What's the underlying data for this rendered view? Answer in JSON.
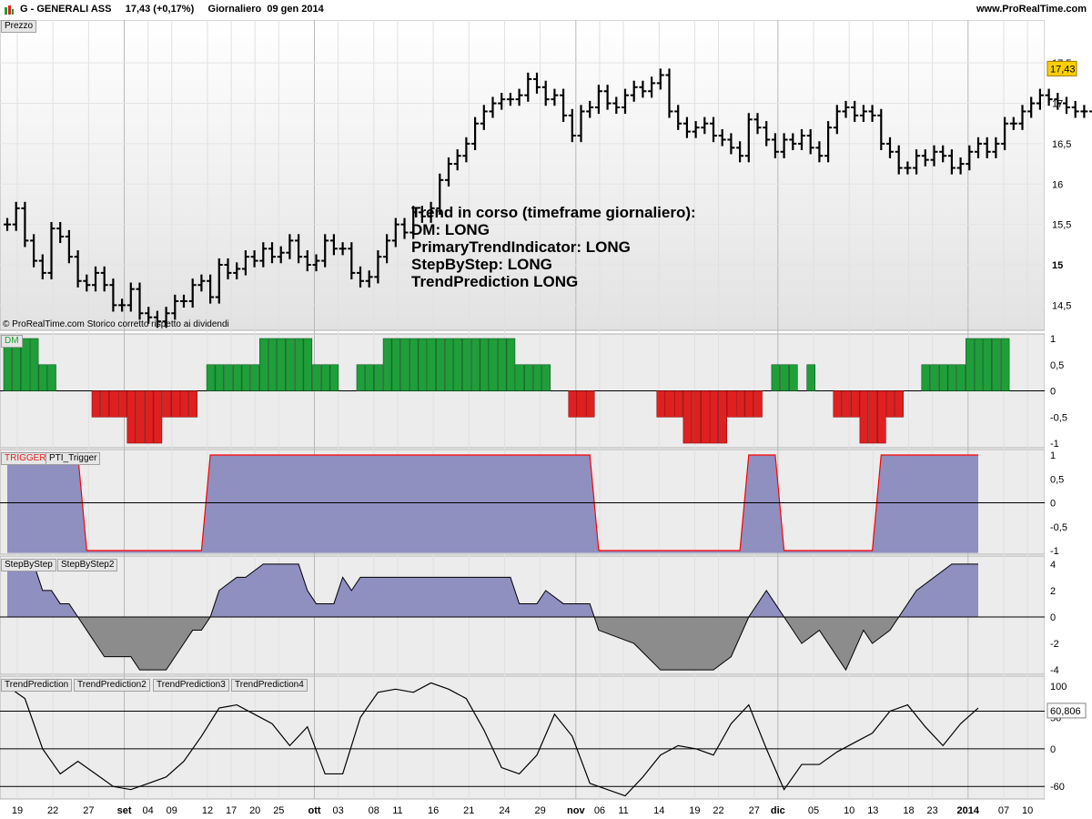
{
  "header": {
    "symbol": "G - GENERALI ASS",
    "last": "17,43 (+0,17%)",
    "period": "Giornaliero",
    "date": "09 gen 2014",
    "site": "www.ProRealTime.com"
  },
  "colors": {
    "up_bar": "#1f9e3a",
    "down_bar": "#e02020",
    "area_fill": "#8f8fc0",
    "neg_area_fill": "#8c8c8c",
    "trigger_line": "#ff0000",
    "price_label_bg": "#ffd000"
  },
  "price_panel": {
    "label": "Prezzo",
    "copyright": "© ProRealTime.com  Storico corretto rispetto ai dividendi",
    "current_value": "17,43",
    "yticks": [
      "17,5",
      "17",
      "16,5",
      "16",
      "15,5",
      "15",
      "14,5"
    ],
    "annotation": [
      "Trend in corso (timeframe giornaliero):",
      "DM: LONG",
      "PrimaryTrendIndicator: LONG",
      "StepByStep: LONG",
      "TrendPrediction LONG"
    ]
  },
  "dm_panel": {
    "label": "DM",
    "yticks": [
      "1",
      "0,5",
      "0",
      "-0,5",
      "-1"
    ]
  },
  "trigger_panel": {
    "labels": [
      "TRIGGER",
      "PTI_Trigger"
    ],
    "yticks": [
      "1",
      "0,5",
      "0",
      "-0,5",
      "-1"
    ]
  },
  "step_panel": {
    "labels": [
      "StepByStep",
      "StepByStep2"
    ],
    "yticks": [
      "4",
      "2",
      "0",
      "-2",
      "-4"
    ]
  },
  "tp_panel": {
    "labels": [
      "TrendPrediction",
      "TrendPrediction2",
      "TrendPrediction3",
      "TrendPrediction4"
    ],
    "yticks": [
      "100",
      "50",
      "0",
      "-60"
    ],
    "current_value": "60,806"
  },
  "x_axis": {
    "ticks": [
      {
        "label": "19",
        "bold": false
      },
      {
        "label": "22",
        "bold": false
      },
      {
        "label": "27",
        "bold": false
      },
      {
        "label": "set",
        "bold": true
      },
      {
        "label": "04",
        "bold": false
      },
      {
        "label": "09",
        "bold": false
      },
      {
        "label": "12",
        "bold": false
      },
      {
        "label": "17",
        "bold": false
      },
      {
        "label": "20",
        "bold": false
      },
      {
        "label": "25",
        "bold": false
      },
      {
        "label": "ott",
        "bold": true
      },
      {
        "label": "03",
        "bold": false
      },
      {
        "label": "08",
        "bold": false
      },
      {
        "label": "11",
        "bold": false
      },
      {
        "label": "16",
        "bold": false
      },
      {
        "label": "21",
        "bold": false
      },
      {
        "label": "24",
        "bold": false
      },
      {
        "label": "29",
        "bold": false
      },
      {
        "label": "nov",
        "bold": true
      },
      {
        "label": "06",
        "bold": false
      },
      {
        "label": "11",
        "bold": false
      },
      {
        "label": "14",
        "bold": false
      },
      {
        "label": "19",
        "bold": false
      },
      {
        "label": "22",
        "bold": false
      },
      {
        "label": "27",
        "bold": false
      },
      {
        "label": "dic",
        "bold": true
      },
      {
        "label": "05",
        "bold": false
      },
      {
        "label": "10",
        "bold": false
      },
      {
        "label": "13",
        "bold": false
      },
      {
        "label": "18",
        "bold": false
      },
      {
        "label": "23",
        "bold": false
      },
      {
        "label": "2014",
        "bold": true
      },
      {
        "label": "07",
        "bold": false
      },
      {
        "label": "10",
        "bold": false
      }
    ]
  },
  "chart_data": [
    {
      "type": "line",
      "name": "price",
      "style": "ohlc-bars",
      "ylim": [
        14.2,
        17.75
      ],
      "close": [
        15.5,
        15.7,
        15.3,
        15.05,
        14.9,
        15.45,
        15.35,
        15.1,
        14.8,
        14.75,
        14.9,
        14.75,
        14.5,
        14.5,
        14.7,
        14.4,
        14.35,
        14.3,
        14.4,
        14.55,
        14.55,
        14.75,
        14.8,
        14.6,
        15,
        14.9,
        14.95,
        15.1,
        15.05,
        15.2,
        15.1,
        15.15,
        15.3,
        15.1,
        15.0,
        15.05,
        15.3,
        15.2,
        15.2,
        14.9,
        14.8,
        14.85,
        15.1,
        15.3,
        15.5,
        15.4,
        15.65,
        15.6,
        15.7,
        16.05,
        16.25,
        16.35,
        16.5,
        16.75,
        16.9,
        17.0,
        17.05,
        17.05,
        17.1,
        17.3,
        17.2,
        17.05,
        17.1,
        16.85,
        16.6,
        16.9,
        16.95,
        17.15,
        17.0,
        16.95,
        17.1,
        17.2,
        17.15,
        17.25,
        17.35,
        16.9,
        16.75,
        16.65,
        16.7,
        16.75,
        16.6,
        16.55,
        16.45,
        16.35,
        16.8,
        16.7,
        16.55,
        16.4,
        16.55,
        16.5,
        16.6,
        16.45,
        16.35,
        16.7,
        16.9,
        16.95,
        16.85,
        16.9,
        16.85,
        16.5,
        16.4,
        16.2,
        16.2,
        16.35,
        16.3,
        16.4,
        16.35,
        16.2,
        16.25,
        16.4,
        16.5,
        16.4,
        16.5,
        16.75,
        16.75,
        16.9,
        17.0,
        17.1,
        17.05,
        17.0,
        16.95,
        16.9,
        16.9,
        17.3,
        17.4,
        17.43
      ],
      "yticks": [
        17.5,
        17,
        16.5,
        16,
        15.5,
        15,
        14.5
      ]
    },
    {
      "type": "bar",
      "name": "DM",
      "ylim": [
        -1,
        1
      ],
      "values": [
        1,
        1,
        1,
        1,
        0.5,
        0.5,
        0,
        0,
        0,
        0,
        -0.5,
        -0.5,
        -0.5,
        -0.5,
        -1,
        -1,
        -1,
        -1,
        -0.5,
        -0.5,
        -0.5,
        -0.5,
        0,
        0.5,
        0.5,
        0.5,
        0.5,
        0.5,
        0.5,
        1,
        1,
        1,
        1,
        1,
        1,
        0.5,
        0.5,
        0.5,
        0,
        0,
        0.5,
        0.5,
        0.5,
        1,
        1,
        1,
        1,
        1,
        1,
        1,
        1,
        1,
        1,
        1,
        1,
        1,
        1,
        1,
        0.5,
        0.5,
        0.5,
        0.5,
        0,
        0,
        -0.5,
        -0.5,
        -0.5,
        0,
        0,
        0,
        0,
        0,
        0,
        0,
        -0.5,
        -0.5,
        -0.5,
        -1,
        -1,
        -1,
        -1,
        -1,
        -0.5,
        -0.5,
        -0.5,
        -0.5,
        0,
        0.5,
        0.5,
        0.5,
        0,
        0.5,
        0,
        0,
        -0.5,
        -0.5,
        -0.5,
        -1,
        -1,
        -1,
        -0.5,
        -0.5,
        0,
        0,
        0.5,
        0.5,
        0.5,
        0.5,
        0.5,
        1,
        1,
        1,
        1,
        1
      ]
    },
    {
      "type": "area",
      "name": "PTI_Trigger",
      "ylim": [
        -1,
        1
      ],
      "x": [
        0,
        8,
        9,
        22,
        23,
        66,
        67,
        83,
        84,
        87,
        88,
        98,
        99,
        110
      ],
      "values": [
        1,
        1,
        -1,
        -1,
        1,
        1,
        -1,
        -1,
        1,
        1,
        -1,
        -1,
        1,
        1
      ]
    },
    {
      "type": "area",
      "name": "StepByStep",
      "ylim": [
        -4.4,
        4.4
      ],
      "x": [
        0,
        3,
        4,
        5,
        6,
        7,
        8,
        9,
        10,
        11,
        12,
        14,
        15,
        16,
        18,
        20,
        21,
        22,
        23,
        24,
        26,
        27,
        29,
        30,
        33,
        34,
        35,
        37,
        38,
        39,
        40,
        43,
        57,
        58,
        60,
        61,
        63,
        66,
        67,
        71,
        74,
        77,
        80,
        82,
        84,
        86,
        87,
        88,
        90,
        92,
        95,
        97,
        98,
        100,
        101,
        103,
        107,
        110
      ],
      "values": [
        4,
        4,
        2,
        2,
        1,
        1,
        0,
        -1,
        -2,
        -3,
        -3,
        -3,
        -4,
        -4,
        -4,
        -2,
        -1,
        -1,
        0,
        2,
        3,
        3,
        4,
        4,
        4,
        2,
        1,
        1,
        3,
        2,
        3,
        3,
        3,
        1,
        1,
        2,
        1,
        1,
        -1,
        -2,
        -4,
        -4,
        -4,
        -3,
        0,
        2,
        1,
        0,
        -2,
        -1,
        -4,
        -1,
        -2,
        -1,
        0,
        2,
        4,
        4
      ]
    },
    {
      "type": "line",
      "name": "TrendPrediction",
      "ylim": [
        -80,
        110
      ],
      "x": [
        0,
        2,
        4,
        6,
        8,
        10,
        12,
        14,
        16,
        18,
        20,
        22,
        24,
        26,
        28,
        30,
        32,
        34,
        36,
        38,
        40,
        42,
        44,
        46,
        48,
        50,
        52,
        54,
        56,
        58,
        60,
        62,
        64,
        66,
        68,
        70,
        72,
        74,
        76,
        78,
        80,
        82,
        84,
        86,
        88,
        90,
        92,
        94,
        96,
        98,
        100,
        102,
        104,
        106,
        108,
        110
      ],
      "values": [
        100,
        80,
        0,
        -40,
        -20,
        -40,
        -60,
        -65,
        -55,
        -45,
        -20,
        20,
        65,
        70,
        55,
        40,
        5,
        35,
        -40,
        -40,
        50,
        90,
        95,
        90,
        105,
        95,
        80,
        30,
        -30,
        -40,
        -10,
        55,
        20,
        -55,
        -65,
        -75,
        -45,
        -10,
        5,
        0,
        -10,
        40,
        70,
        0,
        -65,
        -25,
        -25,
        -5,
        10,
        25,
        60,
        70,
        35,
        5,
        40,
        65
      ],
      "hlines": [
        60,
        0,
        -60
      ]
    }
  ]
}
